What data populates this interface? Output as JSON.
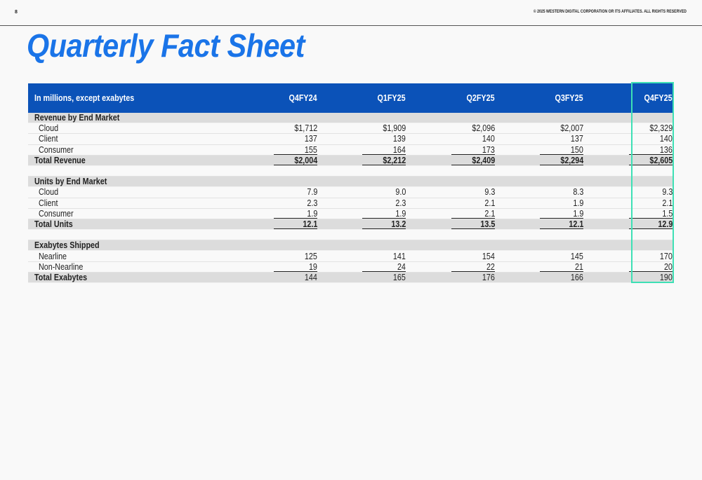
{
  "header": {
    "page_number": "8",
    "copyright": "© 2025 WESTERN DIGITAL CORPORATION OR ITS AFFILIATES. ALL RIGHTS RESERVED"
  },
  "page_title": "Quarterly Fact Sheet",
  "table": {
    "units_label": "In millions, except exabytes",
    "columns": [
      "Q4FY24",
      "Q1FY25",
      "Q2FY25",
      "Q3FY25",
      "Q4FY25"
    ],
    "highlight_column": "Q4FY25",
    "highlight_color": "#3ee0b5",
    "header_color": "#0b52b8",
    "sections": [
      {
        "title": "Revenue by End Market",
        "rows": [
          {
            "label": "Cloud",
            "values": [
              "$1,712",
              "$1,909",
              "$2,096",
              "$2,007",
              "$2,329"
            ]
          },
          {
            "label": "Client",
            "values": [
              "137",
              "139",
              "140",
              "137",
              "140"
            ]
          },
          {
            "label": "Consumer",
            "values": [
              "155",
              "164",
              "173",
              "150",
              "136"
            ]
          }
        ],
        "total": {
          "label": "Total Revenue",
          "values": [
            "$2,004",
            "$2,212",
            "$2,409",
            "$2,294",
            "$2,605"
          ]
        }
      },
      {
        "title": "Units by End Market",
        "rows": [
          {
            "label": "Cloud",
            "values": [
              "7.9",
              "9.0",
              "9.3",
              "8.3",
              "9.3"
            ]
          },
          {
            "label": "Client",
            "values": [
              "2.3",
              "2.3",
              "2.1",
              "1.9",
              "2.1"
            ]
          },
          {
            "label": "Consumer",
            "values": [
              "1.9",
              "1.9",
              "2.1",
              "1.9",
              "1.5"
            ]
          }
        ],
        "total": {
          "label": "Total Units",
          "values": [
            "12.1",
            "13.2",
            "13.5",
            "12.1",
            "12.9"
          ]
        }
      },
      {
        "title": "Exabytes Shipped",
        "rows": [
          {
            "label": "Nearline",
            "values": [
              "125",
              "141",
              "154",
              "145",
              "170"
            ]
          },
          {
            "label": "Non-Nearline",
            "values": [
              "19",
              "24",
              "22",
              "21",
              "20"
            ]
          }
        ],
        "total": {
          "label": "Total Exabytes",
          "values": [
            "144",
            "165",
            "176",
            "166",
            "190"
          ]
        }
      }
    ]
  }
}
